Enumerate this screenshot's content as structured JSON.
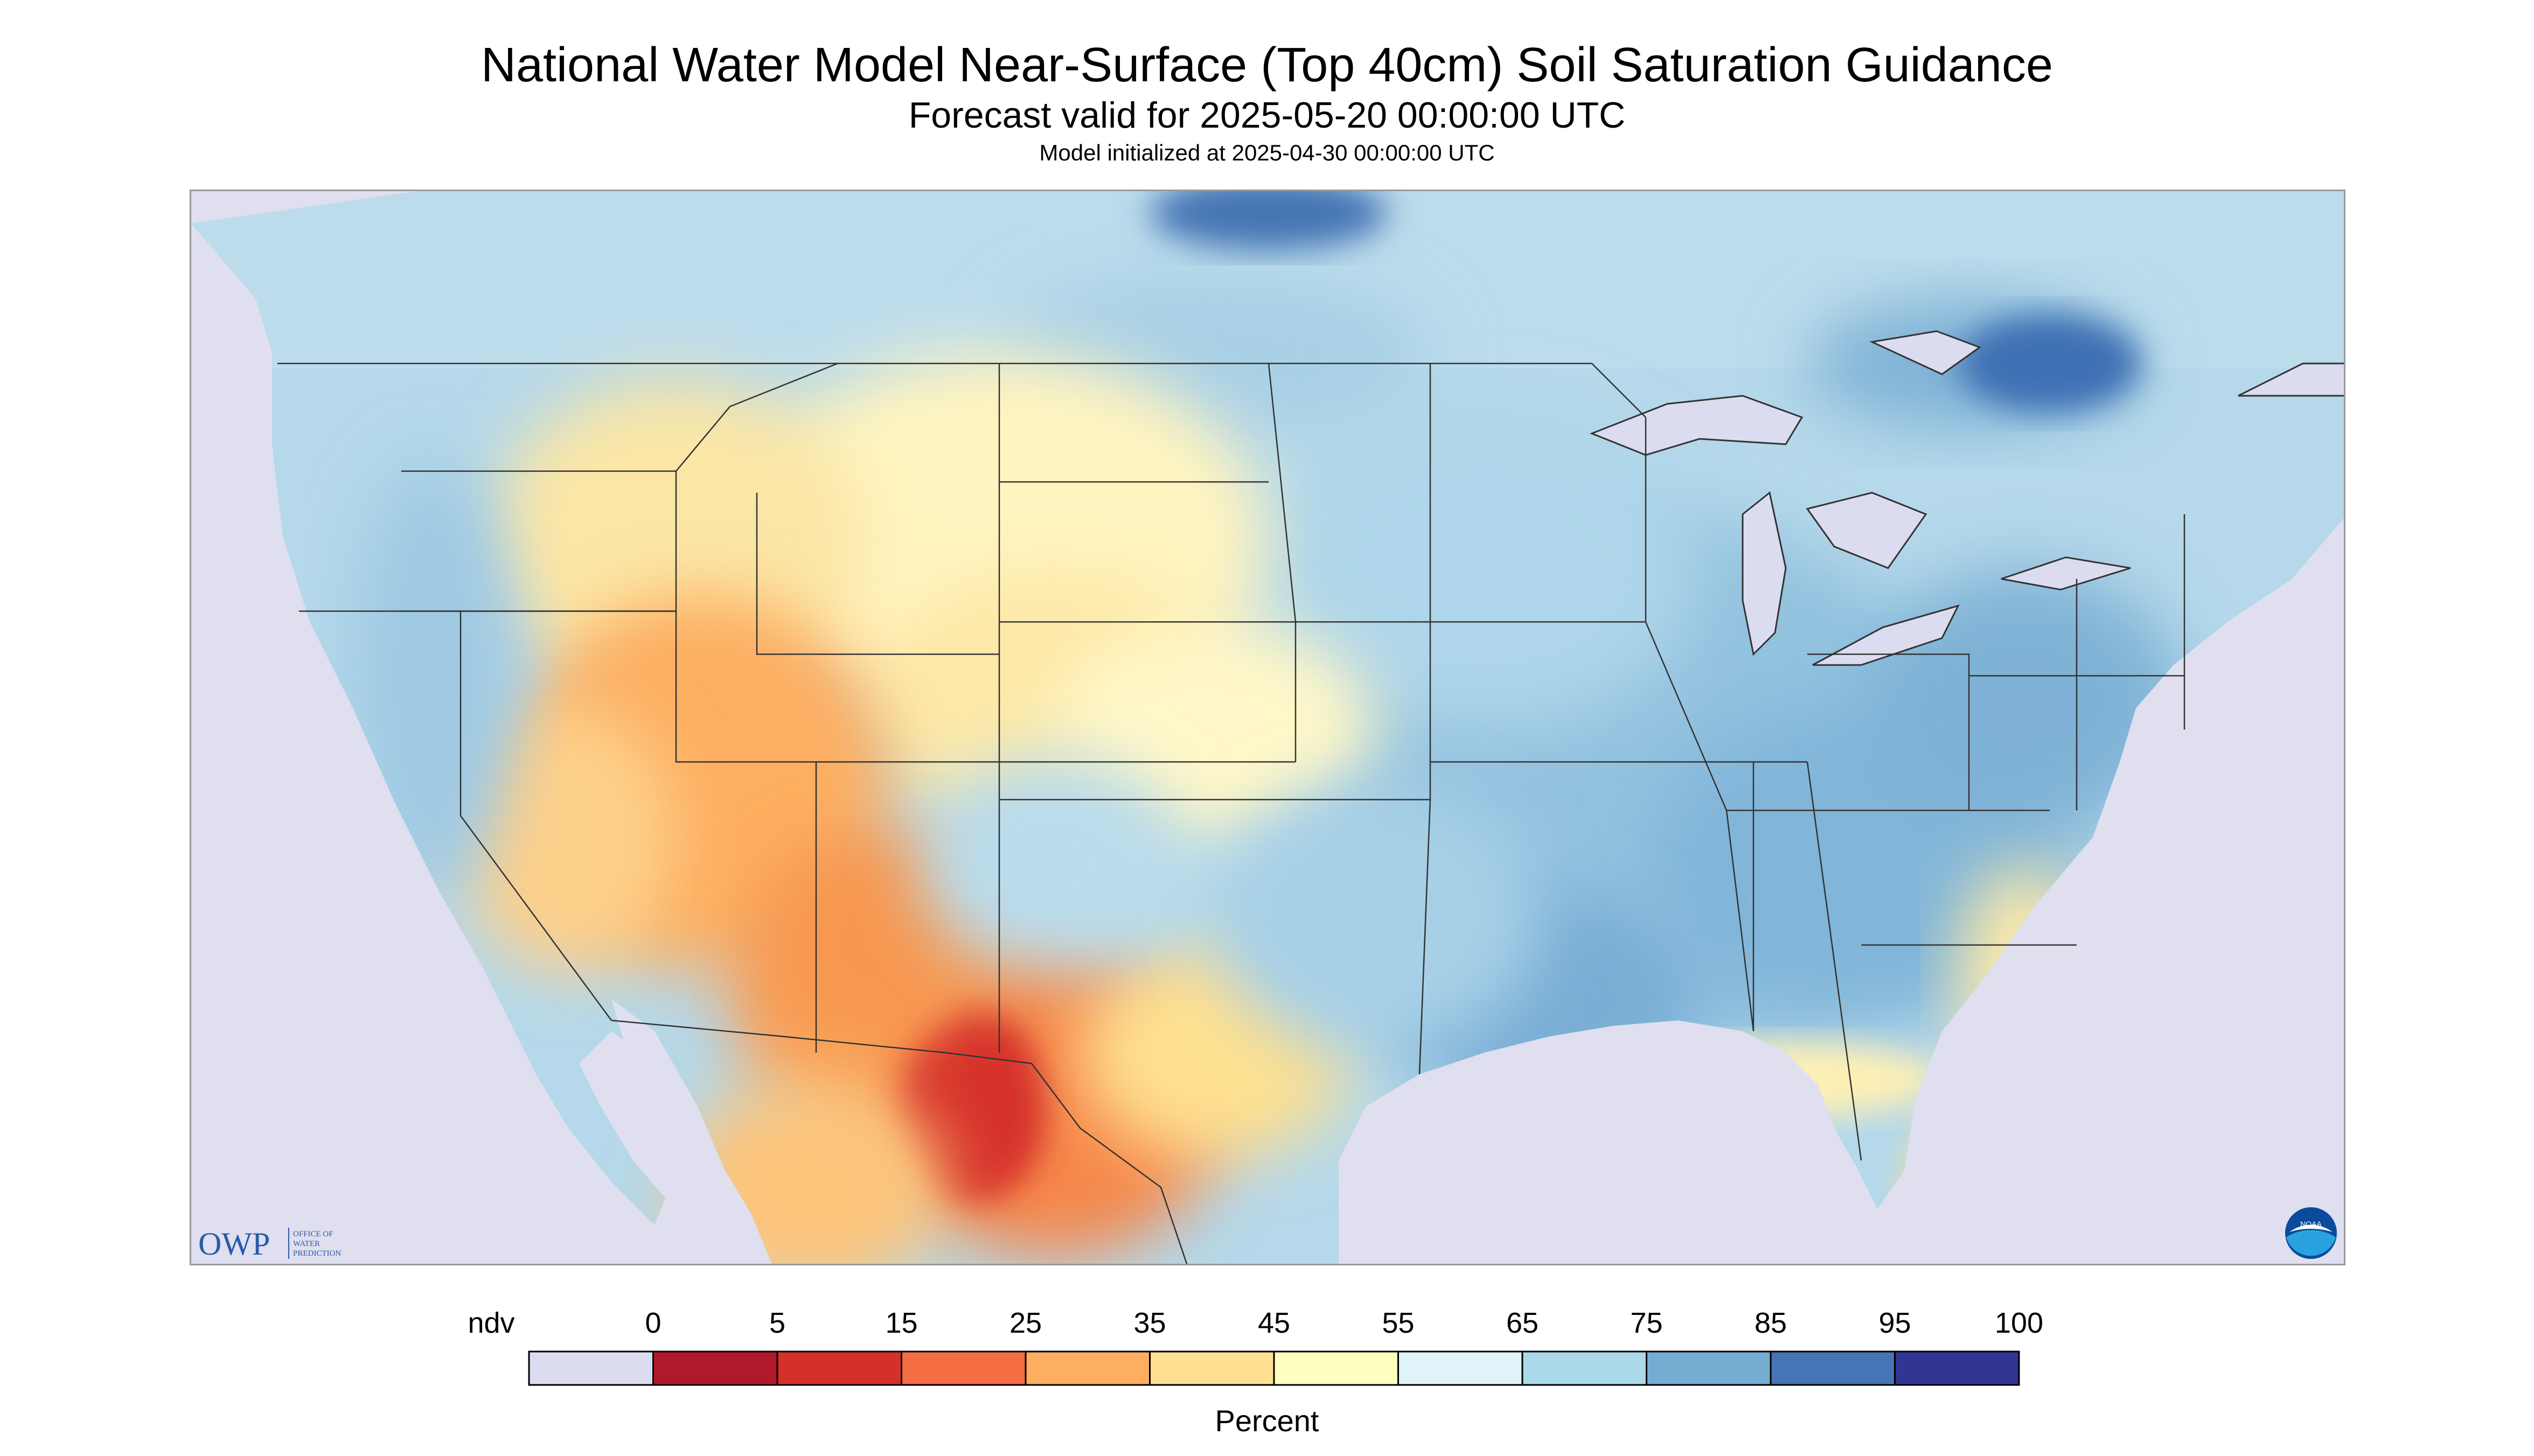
{
  "header": {
    "title": "National Water Model Near-Surface (Top 40cm) Soil Saturation Guidance",
    "subtitle": "Forecast valid for 2025-05-20 00:00:00 UTC",
    "init": "Model initialized at 2025-04-30 00:00:00 UTC"
  },
  "logos": {
    "owp_mark": "OWP",
    "owp_text_1": "OFFICE OF",
    "owp_text_2": "WATER",
    "owp_text_3": "PREDICTION",
    "noaa_text": "NOAA"
  },
  "legend": {
    "units": "Percent",
    "labels": [
      "ndv",
      "0",
      "5",
      "15",
      "25",
      "35",
      "45",
      "55",
      "65",
      "75",
      "85",
      "95",
      "100"
    ],
    "colors": [
      "#dcdcf0",
      "#b2182b",
      "#d6302a",
      "#f46d43",
      "#fdae61",
      "#fee090",
      "#ffffbf",
      "#e0f3f8",
      "#abd9e9",
      "#74add1",
      "#4575b4",
      "#313695"
    ]
  },
  "palette": {
    "ocean": "#dfdff0",
    "canada": "#bcdcec",
    "lakes": "#dcdcf0",
    "boundaries": "#333333"
  }
}
